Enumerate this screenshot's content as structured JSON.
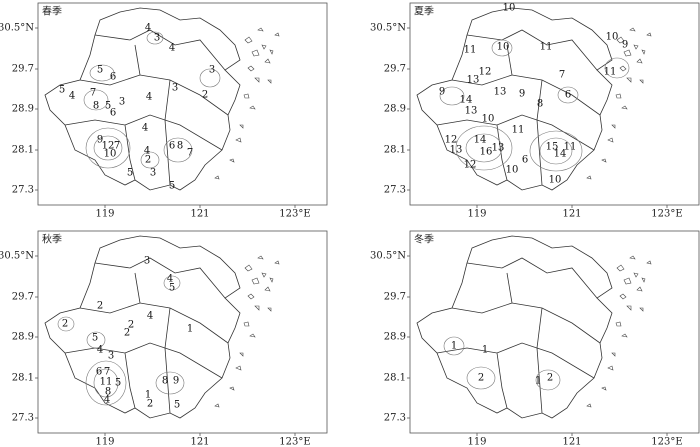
{
  "panels": [
    {
      "title": "春季",
      "y_ticks": [
        "30.5°N",
        "29.7",
        "28.9",
        "28.1",
        "27.3"
      ],
      "x_ticks": [
        "119",
        "121",
        "123°E"
      ],
      "contour_labels": [
        "4",
        "3",
        "4",
        "5",
        "6",
        "3",
        "5",
        "4",
        "7",
        "8",
        "5",
        "6",
        "3",
        "4",
        "3",
        "2",
        "4",
        "9",
        "12",
        "7",
        "10",
        "4",
        "6",
        "8",
        "7",
        "2",
        "5",
        "3",
        "5"
      ]
    },
    {
      "title": "夏季",
      "y_ticks": [
        "30.5°N",
        "29.7",
        "28.9",
        "28.1",
        "27.3"
      ],
      "x_ticks": [
        "119",
        "121",
        "123°E"
      ],
      "contour_labels": [
        "10",
        "11",
        "10",
        "11",
        "10",
        "11",
        "9",
        "12",
        "13",
        "9",
        "14",
        "13",
        "9",
        "7",
        "8",
        "6",
        "13",
        "10",
        "11",
        "12",
        "14",
        "13",
        "16",
        "13",
        "15",
        "14",
        "11",
        "6",
        "10",
        "10",
        "12"
      ]
    },
    {
      "title": "秋季",
      "y_ticks": [
        "30.5°N",
        "29.7",
        "28.9",
        "28.1",
        "27.3"
      ],
      "x_ticks": [
        "119",
        "121",
        "123°E"
      ],
      "contour_labels": [
        "3",
        "4",
        "5",
        "2",
        "2",
        "4",
        "5",
        "4",
        "2",
        "1",
        "3",
        "2",
        "6",
        "7",
        "11",
        "8",
        "4",
        "5",
        "9",
        "8",
        "1",
        "2",
        "5"
      ]
    },
    {
      "title": "冬季",
      "y_ticks": [
        "30.5°N",
        "29.7",
        "28.9",
        "28.1",
        "27.3"
      ],
      "x_ticks": [
        "119",
        "121",
        "123°E"
      ],
      "contour_labels": [
        "1",
        "1",
        "2",
        "1",
        "2"
      ]
    }
  ]
}
